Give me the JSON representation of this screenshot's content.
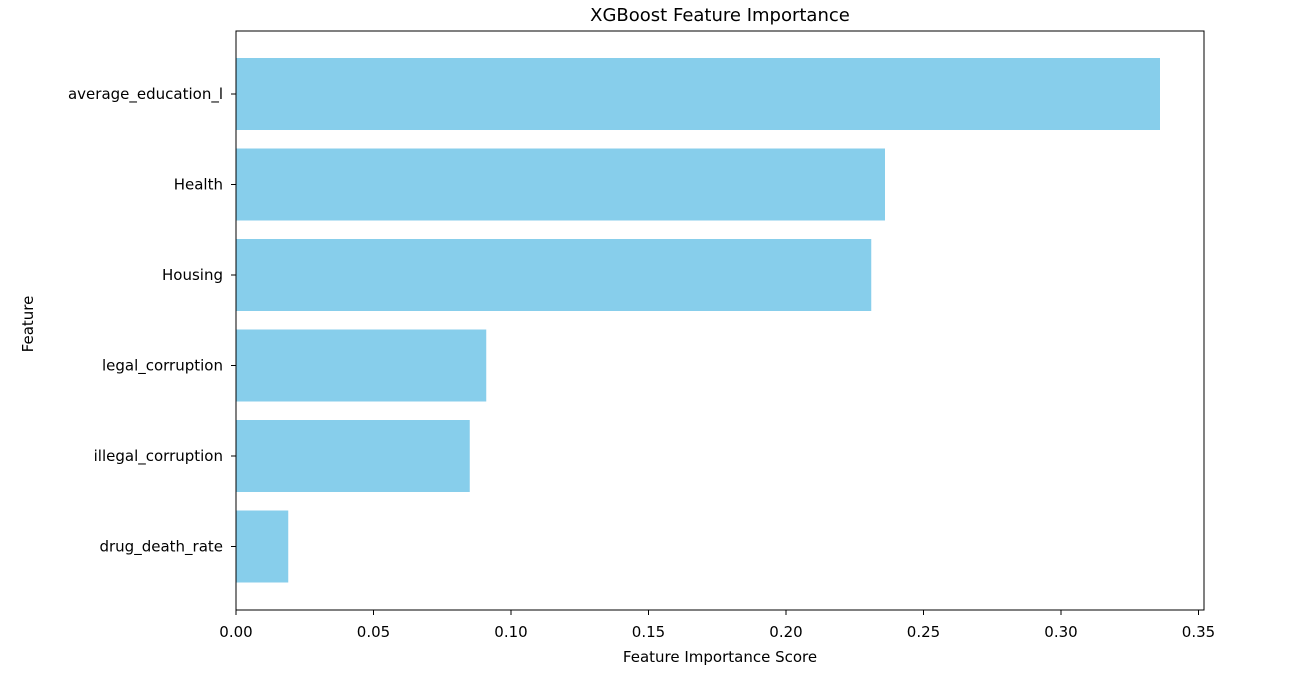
{
  "chart_data": {
    "type": "bar",
    "orientation": "horizontal",
    "title": "XGBoost Feature Importance",
    "xlabel": "Feature Importance Score",
    "ylabel": "Feature",
    "categories": [
      "average_education_l",
      "Health",
      "Housing",
      "legal_corruption",
      "illegal_corruption",
      "drug_death_rate"
    ],
    "values": [
      0.336,
      0.236,
      0.231,
      0.091,
      0.085,
      0.019
    ],
    "xlim": [
      0.0,
      0.352
    ],
    "xticks": [
      0.0,
      0.05,
      0.1,
      0.15,
      0.2,
      0.25,
      0.3,
      0.35
    ],
    "xtick_labels": [
      "0.00",
      "0.05",
      "0.10",
      "0.15",
      "0.20",
      "0.25",
      "0.30",
      "0.35"
    ],
    "bar_color": "#87ceeb",
    "grid": false,
    "legend": "none"
  }
}
